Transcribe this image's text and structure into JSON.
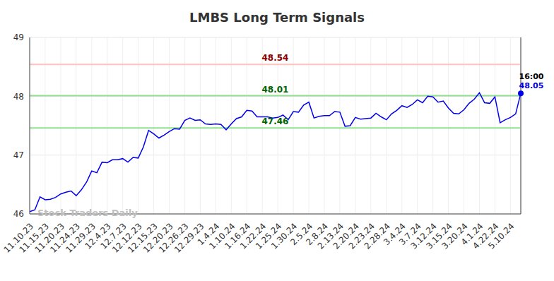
{
  "chart_data": {
    "type": "line",
    "title": "LMBS Long Term Signals",
    "watermark": "Stock Traders Daily",
    "end_label": "16:00",
    "categories": [
      "11.10.23",
      null,
      null,
      "11.15.23",
      null,
      null,
      "11.20.23",
      null,
      null,
      "11.24.23",
      null,
      null,
      "11.29.23",
      null,
      null,
      "12.4.23",
      null,
      null,
      "12.7.23",
      null,
      null,
      "12.12.23",
      null,
      null,
      "12.15.23",
      null,
      null,
      "12.20.23",
      null,
      null,
      "12.26.23",
      null,
      null,
      "12.29.23",
      null,
      null,
      "1.4.24",
      null,
      null,
      "1.10.24",
      null,
      null,
      "1.16.24",
      null,
      null,
      "1.22.24",
      null,
      null,
      "1.25.24",
      null,
      null,
      "1.30.24",
      null,
      null,
      "2.5.24",
      null,
      null,
      "2.8.24",
      null,
      null,
      "2.13.24",
      null,
      null,
      "2.20.24",
      null,
      null,
      "2.23.24",
      null,
      null,
      "2.28.24",
      null,
      null,
      "3.4.24",
      null,
      null,
      "3.7.24",
      null,
      null,
      "3.12.24",
      null,
      null,
      "3.15.24",
      null,
      null,
      "3.20.24",
      null,
      null,
      "4.1.24",
      null,
      null,
      "4.22.24",
      null,
      null,
      "5.10.24",
      null,
      null
    ],
    "values": [
      46.04,
      46.07,
      46.29,
      46.24,
      46.25,
      46.28,
      46.34,
      46.37,
      46.39,
      46.31,
      46.41,
      46.54,
      46.73,
      46.7,
      46.88,
      46.87,
      46.92,
      46.92,
      46.94,
      46.88,
      46.96,
      46.95,
      47.14,
      47.42,
      47.36,
      47.29,
      47.34,
      47.4,
      47.45,
      47.44,
      47.59,
      47.63,
      47.59,
      47.6,
      47.53,
      47.52,
      47.53,
      47.52,
      47.43,
      47.53,
      47.62,
      47.65,
      47.76,
      47.75,
      47.65,
      47.65,
      47.65,
      47.63,
      47.64,
      47.68,
      47.6,
      47.74,
      47.73,
      47.85,
      47.9,
      47.63,
      47.66,
      47.67,
      47.67,
      47.74,
      47.73,
      47.49,
      47.5,
      47.64,
      47.61,
      47.62,
      47.63,
      47.71,
      47.65,
      47.6,
      47.7,
      47.76,
      47.84,
      47.81,
      47.86,
      47.94,
      47.89,
      48.0,
      47.99,
      47.9,
      47.92,
      47.8,
      47.71,
      47.7,
      47.77,
      47.88,
      47.95,
      48.06,
      47.89,
      47.88,
      47.99,
      47.55,
      47.6,
      47.64,
      47.7,
      48.05
    ],
    "color": "#0000ee",
    "ylim": [
      46,
      49
    ],
    "yticks": [
      46,
      47,
      48,
      49
    ],
    "grid": true,
    "reference_lines": [
      {
        "value": 48.54,
        "color": "#ffc0c0",
        "label_color": "#8b0000"
      },
      {
        "value": 48.01,
        "color": "#90e090",
        "label_color": "#006400"
      },
      {
        "value": 47.46,
        "color": "#90e090",
        "label_color": "#006400"
      }
    ]
  }
}
